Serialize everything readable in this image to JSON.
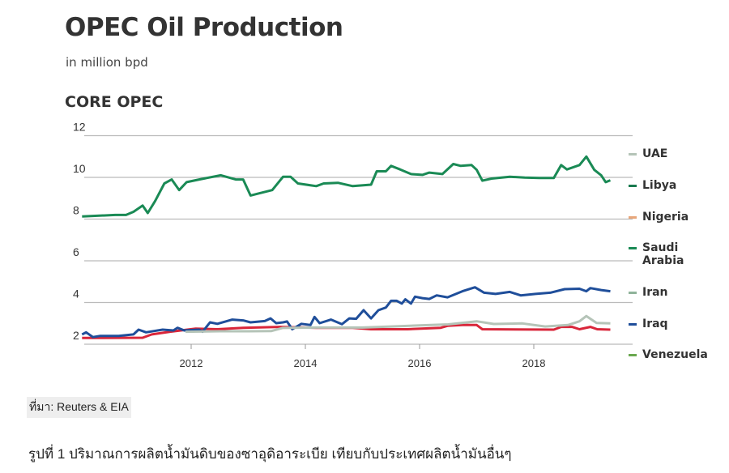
{
  "chart_data": {
    "type": "line",
    "title": "OPEC Oil Production",
    "subtitle": "in million bpd",
    "section": "CORE OPEC",
    "xlabel": "",
    "ylabel": "",
    "xlim": [
      2010.0,
      2019.45
    ],
    "ylim": [
      1.8,
      12
    ],
    "yticks": [
      "12",
      "10",
      "8",
      "6",
      "4",
      "2"
    ],
    "ytick_values": [
      12,
      10,
      8,
      6,
      4,
      2
    ],
    "xticks": [
      "2012",
      "2014",
      "2016",
      "2018"
    ],
    "xtick_values": [
      2012,
      2014,
      2016,
      2018
    ],
    "grid": true,
    "legend_position": "right",
    "legend": [
      {
        "name": "UAE",
        "color": "#b5c4b8"
      },
      {
        "name": "Libya",
        "color": "#1a7a4f"
      },
      {
        "name": "Nigeria",
        "color": "#e8a67a"
      },
      {
        "name": "Saudi",
        "name2": "Arabia",
        "color": "#1a8a55"
      },
      {
        "name": "Iran",
        "color": "#8fb39a"
      },
      {
        "name": "Iraq",
        "color": "#1f4e9a"
      },
      {
        "name": "Venezuela",
        "color": "#6aa84f"
      }
    ],
    "series": [
      {
        "name": "Saudi Arabia",
        "color": "#1a8a55",
        "points": [
          [
            2010.09,
            8.13
          ],
          [
            2010.67,
            8.2
          ],
          [
            2010.86,
            8.2
          ],
          [
            2010.99,
            8.35
          ],
          [
            2011.15,
            8.65
          ],
          [
            2011.24,
            8.29
          ],
          [
            2011.37,
            8.87
          ],
          [
            2011.53,
            9.71
          ],
          [
            2011.66,
            9.9
          ],
          [
            2011.79,
            9.39
          ],
          [
            2011.92,
            9.77
          ],
          [
            2012.14,
            9.9
          ],
          [
            2012.52,
            10.1
          ],
          [
            2012.78,
            9.9
          ],
          [
            2012.91,
            9.9
          ],
          [
            2013.04,
            9.13
          ],
          [
            2013.17,
            9.22
          ],
          [
            2013.42,
            9.39
          ],
          [
            2013.61,
            10.03
          ],
          [
            2013.74,
            10.03
          ],
          [
            2013.87,
            9.71
          ],
          [
            2014.19,
            9.58
          ],
          [
            2014.32,
            9.71
          ],
          [
            2014.57,
            9.74
          ],
          [
            2014.83,
            9.58
          ],
          [
            2015.15,
            9.65
          ],
          [
            2015.25,
            10.29
          ],
          [
            2015.41,
            10.29
          ],
          [
            2015.5,
            10.55
          ],
          [
            2015.66,
            10.38
          ],
          [
            2015.85,
            10.16
          ],
          [
            2016.05,
            10.12
          ],
          [
            2016.17,
            10.23
          ],
          [
            2016.4,
            10.16
          ],
          [
            2016.59,
            10.64
          ],
          [
            2016.72,
            10.55
          ],
          [
            2016.91,
            10.59
          ],
          [
            2017.0,
            10.36
          ],
          [
            2017.1,
            9.84
          ],
          [
            2017.26,
            9.94
          ],
          [
            2017.58,
            10.03
          ],
          [
            2017.84,
            9.99
          ],
          [
            2018.1,
            9.97
          ],
          [
            2018.35,
            9.97
          ],
          [
            2018.48,
            10.59
          ],
          [
            2018.58,
            10.38
          ],
          [
            2018.8,
            10.59
          ],
          [
            2018.92,
            11.0
          ],
          [
            2019.06,
            10.36
          ],
          [
            2019.18,
            10.1
          ],
          [
            2019.26,
            9.77
          ],
          [
            2019.34,
            9.86
          ]
        ]
      },
      {
        "name": "UAE",
        "color": "#b5c4b8",
        "points": [
          [
            2011.9,
            2.6
          ],
          [
            2012.5,
            2.62
          ],
          [
            2013.0,
            2.62
          ],
          [
            2013.4,
            2.63
          ],
          [
            2013.6,
            2.78
          ],
          [
            2014.2,
            2.8
          ],
          [
            2015.0,
            2.8
          ],
          [
            2015.5,
            2.85
          ],
          [
            2016.0,
            2.9
          ],
          [
            2016.5,
            2.95
          ],
          [
            2017.0,
            3.1
          ],
          [
            2017.3,
            2.97
          ],
          [
            2017.8,
            3.0
          ],
          [
            2018.2,
            2.85
          ],
          [
            2018.6,
            2.92
          ],
          [
            2018.8,
            3.1
          ],
          [
            2018.92,
            3.35
          ],
          [
            2019.1,
            3.02
          ],
          [
            2019.34,
            3.0
          ]
        ]
      },
      {
        "name": "Iraq",
        "color": "#1f4e9a",
        "points": [
          [
            2010.09,
            2.47
          ],
          [
            2010.16,
            2.57
          ],
          [
            2010.28,
            2.34
          ],
          [
            2010.41,
            2.4
          ],
          [
            2010.73,
            2.4
          ],
          [
            2010.99,
            2.47
          ],
          [
            2011.08,
            2.7
          ],
          [
            2011.21,
            2.57
          ],
          [
            2011.5,
            2.7
          ],
          [
            2011.69,
            2.66
          ],
          [
            2011.76,
            2.79
          ],
          [
            2011.88,
            2.66
          ],
          [
            2012.14,
            2.7
          ],
          [
            2012.2,
            2.6
          ],
          [
            2012.33,
            3.05
          ],
          [
            2012.46,
            2.98
          ],
          [
            2012.72,
            3.18
          ],
          [
            2012.91,
            3.14
          ],
          [
            2013.04,
            3.05
          ],
          [
            2013.29,
            3.11
          ],
          [
            2013.39,
            3.24
          ],
          [
            2013.49,
            3.01
          ],
          [
            2013.61,
            3.05
          ],
          [
            2013.68,
            3.09
          ],
          [
            2013.77,
            2.72
          ],
          [
            2013.93,
            2.98
          ],
          [
            2014.09,
            2.92
          ],
          [
            2014.16,
            3.31
          ],
          [
            2014.25,
            3.01
          ],
          [
            2014.45,
            3.18
          ],
          [
            2014.64,
            2.96
          ],
          [
            2014.77,
            3.24
          ],
          [
            2014.89,
            3.22
          ],
          [
            2015.02,
            3.63
          ],
          [
            2015.15,
            3.24
          ],
          [
            2015.28,
            3.63
          ],
          [
            2015.41,
            3.76
          ],
          [
            2015.5,
            4.08
          ],
          [
            2015.6,
            4.08
          ],
          [
            2015.69,
            3.95
          ],
          [
            2015.75,
            4.15
          ],
          [
            2015.85,
            3.95
          ],
          [
            2015.92,
            4.28
          ],
          [
            2016.05,
            4.21
          ],
          [
            2016.17,
            4.17
          ],
          [
            2016.3,
            4.34
          ],
          [
            2016.49,
            4.25
          ],
          [
            2016.75,
            4.54
          ],
          [
            2016.97,
            4.73
          ],
          [
            2017.13,
            4.47
          ],
          [
            2017.33,
            4.41
          ],
          [
            2017.58,
            4.51
          ],
          [
            2017.77,
            4.34
          ],
          [
            2018.03,
            4.41
          ],
          [
            2018.29,
            4.47
          ],
          [
            2018.54,
            4.64
          ],
          [
            2018.8,
            4.66
          ],
          [
            2018.92,
            4.54
          ],
          [
            2018.99,
            4.69
          ],
          [
            2019.18,
            4.6
          ],
          [
            2019.34,
            4.54
          ]
        ]
      },
      {
        "name": "",
        "color": "#d9263a",
        "points": [
          [
            2010.09,
            2.3
          ],
          [
            2011.15,
            2.31
          ],
          [
            2011.31,
            2.47
          ],
          [
            2011.63,
            2.6
          ],
          [
            2012.08,
            2.75
          ],
          [
            2012.46,
            2.72
          ],
          [
            2012.91,
            2.79
          ],
          [
            2013.55,
            2.83
          ],
          [
            2014.19,
            2.79
          ],
          [
            2014.83,
            2.79
          ],
          [
            2015.15,
            2.72
          ],
          [
            2015.79,
            2.72
          ],
          [
            2016.37,
            2.79
          ],
          [
            2016.49,
            2.88
          ],
          [
            2016.75,
            2.92
          ],
          [
            2017.0,
            2.92
          ],
          [
            2017.1,
            2.72
          ],
          [
            2018.35,
            2.7
          ],
          [
            2018.48,
            2.83
          ],
          [
            2018.67,
            2.83
          ],
          [
            2018.8,
            2.72
          ],
          [
            2018.99,
            2.83
          ],
          [
            2019.11,
            2.72
          ],
          [
            2019.34,
            2.7
          ]
        ]
      }
    ]
  },
  "source": "ที่มา: Reuters & EIA",
  "caption": "รูปที่ 1 ปริมาณการผลิตน้ำมันดิบของซาอุดิอาระเบีย เทียบกับประเทศผลิตน้ำมันอื่นๆ"
}
